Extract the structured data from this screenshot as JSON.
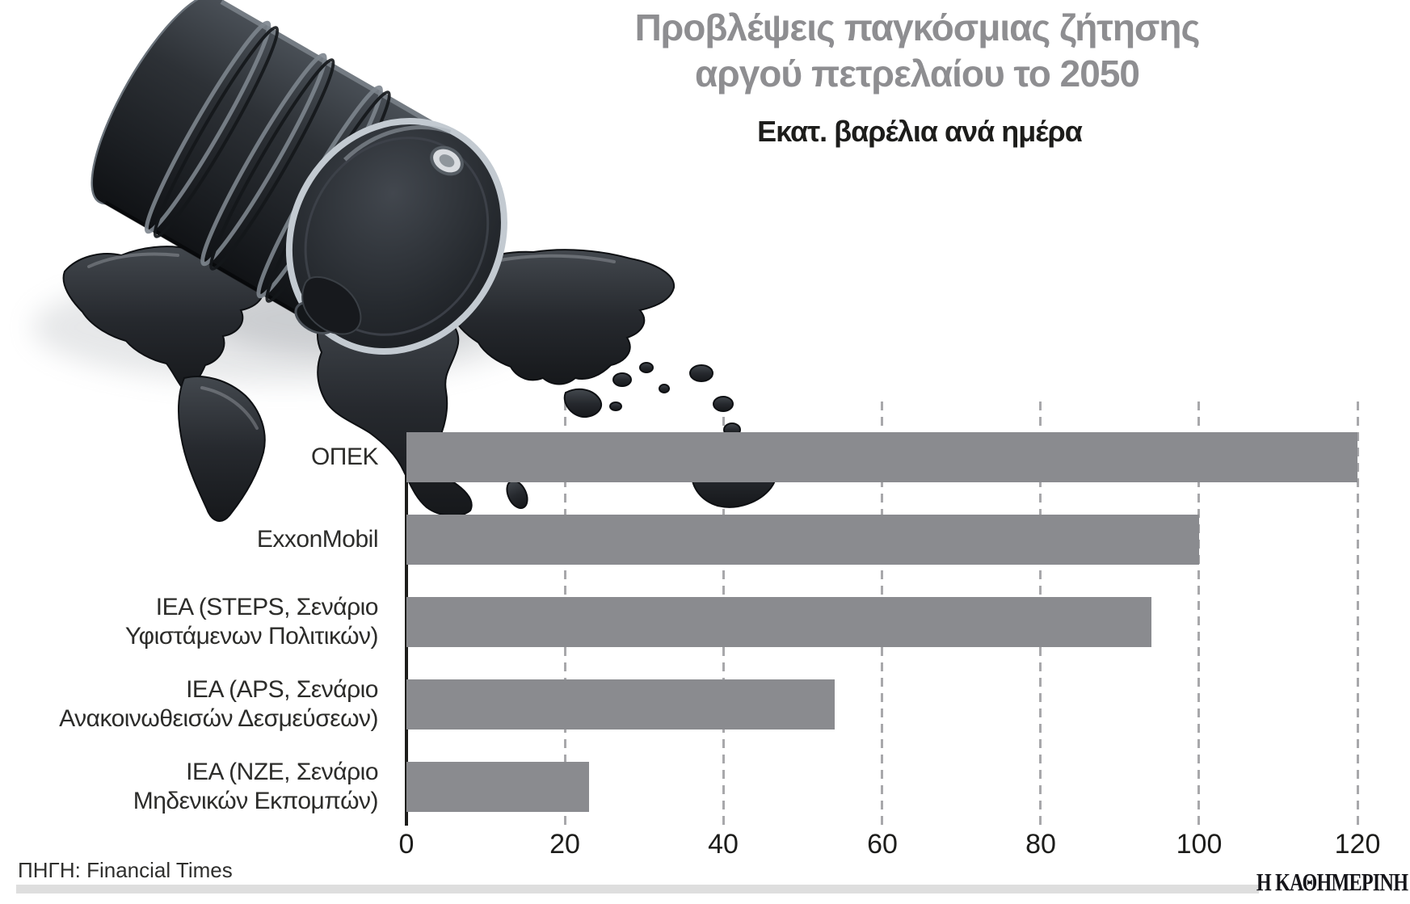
{
  "header": {
    "title_line1": "Προβλέψεις παγκόσμιας ζήτησης",
    "title_line2": "αργού πετρελαίου το 2050",
    "subtitle": "Εκατ. βαρέλια ανά ημέρα"
  },
  "chart_data": {
    "type": "bar",
    "orientation": "horizontal",
    "title": "Προβλέψεις παγκόσμιας ζήτησης αργού πετρελαίου το 2050",
    "unit_label": "Εκατ. βαρέλια ανά ημέρα",
    "categories": [
      "ΟΠΕΚ",
      "ExxonMobil",
      "IEA (STEPS, Σενάριο Υφιστάμενων Πολιτικών)",
      "IEA (APS, Σενάριο Ανακοινωθεισών Δεσμεύσεων)",
      "IEA (NZE, Σενάριο Μηδενικών Εκπομπών)"
    ],
    "category_lines": [
      [
        "ΟΠΕΚ"
      ],
      [
        "ExxonMobil"
      ],
      [
        "IEA (STEPS, Σενάριο",
        "Υφιστάμενων Πολιτικών)"
      ],
      [
        "IEA (APS, Σενάριο",
        "Ανακοινωθεισών Δεσμεύσεων)"
      ],
      [
        "IEA (NZE, Σενάριο",
        "Μηδενικών Εκπομπών)"
      ]
    ],
    "values": [
      120,
      100,
      94,
      54,
      23
    ],
    "x_ticks": [
      0,
      20,
      40,
      60,
      80,
      100,
      120
    ],
    "xlim": [
      0,
      120
    ],
    "grid": "dashed-vertical",
    "legend": "none",
    "bar_color": "#8a8b8f"
  },
  "footer": {
    "source": "ΠΗΓΗ: Financial Times",
    "brand": "Η ΚΑΘΗΜΕΡΙΝΗ"
  },
  "colors": {
    "title_gray": "#8e8e91",
    "bar_gray": "#8a8b8f",
    "gridline_gray": "#a8a8ab",
    "axis_black": "#1d1d1b",
    "divider_gray": "#dedede",
    "text_black": "#2c2c2a",
    "oil_dark": "#1a1c1f"
  },
  "icons": {
    "illustration": "oil-barrel-spill-world-map"
  }
}
